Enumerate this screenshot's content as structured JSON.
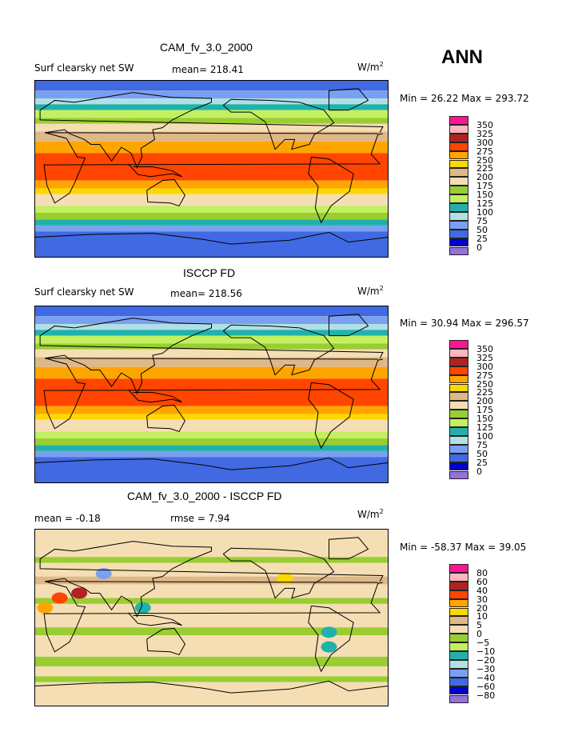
{
  "season": "ANN",
  "colors": [
    "#FF1493",
    "#FFB6C1",
    "#B22222",
    "#FF4500",
    "#FFA500",
    "#FFD700",
    "#DEB887",
    "#F5DEB3",
    "#9ACD32",
    "#C2F060",
    "#20B2AA",
    "#B0E0E6",
    "#7BA0F0",
    "#4169E1",
    "#0000CD",
    "#9370DB"
  ],
  "panels": [
    {
      "title": "CAM_fv_3.0_2000",
      "variable": "Surf clearsky net SW",
      "stat1": "mean= 218.41",
      "stat2": "",
      "units": "W/m",
      "units_exp": "2",
      "minmax": "Min =   26.22  Max = 293.72",
      "levels": [
        "350",
        "325",
        "300",
        "275",
        "250",
        "225",
        "200",
        "175",
        "150",
        "125",
        "100",
        "75",
        "50",
        "25",
        "0"
      ]
    },
    {
      "title": "ISCCP FD",
      "variable": "Surf clearsky net SW",
      "stat1": "mean= 218.56",
      "stat2": "",
      "units": "W/m",
      "units_exp": "2",
      "minmax": "Min =   30.94  Max = 296.57",
      "levels": [
        "350",
        "325",
        "300",
        "275",
        "250",
        "225",
        "200",
        "175",
        "150",
        "125",
        "100",
        "75",
        "50",
        "25",
        "0"
      ]
    },
    {
      "title": "CAM_fv_3.0_2000 - ISCCP FD",
      "variable": "",
      "stat1": "mean =   -0.18",
      "stat2": "rmse =    7.94",
      "units": "W/m",
      "units_exp": "2",
      "minmax": "Min = -58.37  Max =   39.05",
      "levels": [
        "80",
        "60",
        "40",
        "30",
        "20",
        "10",
        "5",
        "0",
        "−5",
        "−10",
        "−20",
        "−30",
        "−40",
        "−60",
        "−80"
      ]
    }
  ]
}
